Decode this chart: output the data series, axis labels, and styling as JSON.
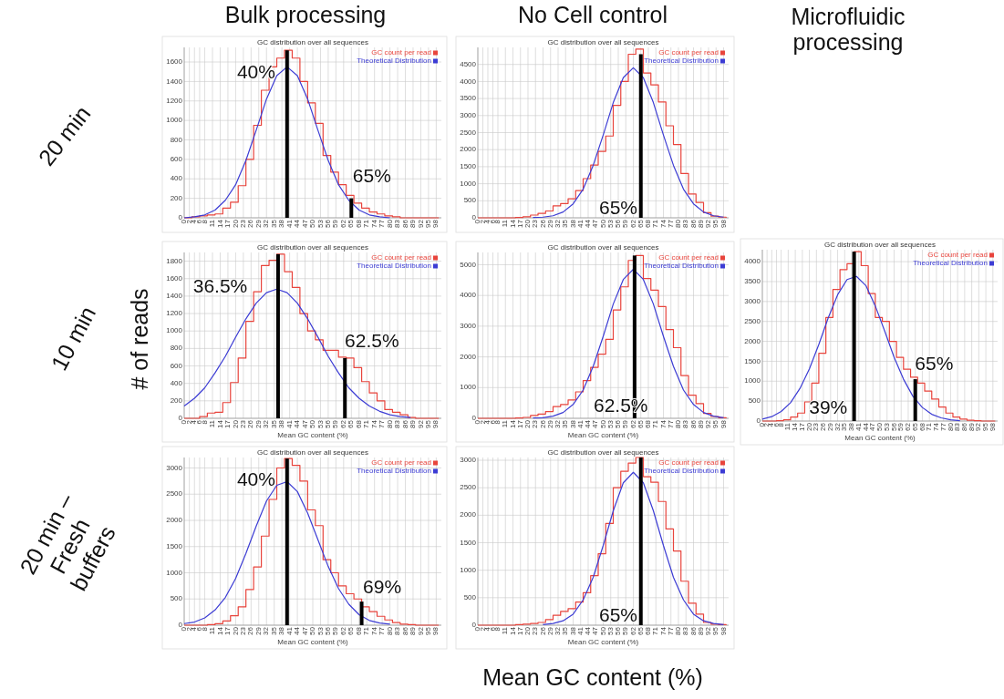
{
  "chart_data": [
    {
      "type": "other",
      "annotations": [
        "Bulk processing",
        "No Cell control",
        "Microfluidic processing",
        "20 min",
        "10 min",
        "20 min – Fresh buffers",
        "# of reads",
        "Mean GC content (%)"
      ]
    },
    {
      "type": "line",
      "title": "GC distribution over all sequences",
      "xlim": [
        0,
        100
      ],
      "ylim": [
        0,
        1750
      ],
      "xticks": [
        0,
        2,
        4,
        6,
        8,
        11,
        14,
        17,
        20,
        23,
        26,
        29,
        32,
        35,
        38,
        41,
        44,
        47,
        50,
        53,
        56,
        59,
        62,
        65,
        68,
        71,
        74,
        77,
        80,
        83,
        86,
        89,
        92,
        95,
        98
      ],
      "yticks": [
        0,
        200,
        400,
        600,
        800,
        1000,
        1200,
        1400,
        1600
      ],
      "grid": true,
      "legend": "top right",
      "series": [
        {
          "name": "GC count per read",
          "type": "step",
          "color": "#e8443c",
          "x": [
            0,
            3,
            6,
            9,
            12,
            15,
            18,
            21,
            24,
            27,
            30,
            33,
            36,
            39,
            42,
            45,
            48,
            51,
            54,
            57,
            60,
            63,
            66,
            69,
            72,
            75,
            78,
            81,
            84,
            87,
            90,
            93,
            96,
            99
          ],
          "values": [
            0,
            10,
            20,
            30,
            40,
            100,
            160,
            330,
            600,
            950,
            1310,
            1550,
            1640,
            1720,
            1640,
            1400,
            1180,
            970,
            640,
            470,
            340,
            230,
            150,
            100,
            60,
            40,
            20,
            10,
            0,
            0,
            0,
            0,
            0,
            0
          ]
        },
        {
          "name": "Theoretical Distribution",
          "type": "line",
          "color": "#3c3cd4",
          "x": [
            0,
            4,
            8,
            12,
            16,
            20,
            24,
            28,
            32,
            36,
            40,
            44,
            48,
            52,
            56,
            60,
            64,
            68,
            72,
            76,
            80
          ],
          "values": [
            0,
            10,
            30,
            80,
            180,
            340,
            590,
            900,
            1220,
            1460,
            1550,
            1460,
            1220,
            900,
            590,
            340,
            180,
            80,
            30,
            10,
            0
          ]
        },
        {
          "type": "bar",
          "color": "#000000",
          "x": [
            40,
            65
          ],
          "values": [
            1720,
            200
          ]
        }
      ],
      "annotations": [
        "40%",
        "65%"
      ]
    },
    {
      "type": "line",
      "title": "GC distribution over all sequences",
      "xlim": [
        0,
        100
      ],
      "ylim": [
        0,
        5000
      ],
      "xticks": [
        0,
        2,
        4,
        6,
        8,
        11,
        14,
        17,
        20,
        23,
        26,
        29,
        32,
        35,
        38,
        41,
        44,
        47,
        50,
        53,
        56,
        59,
        62,
        65,
        68,
        71,
        74,
        77,
        80,
        83,
        86,
        89,
        92,
        95,
        98
      ],
      "yticks": [
        0,
        500,
        1000,
        1500,
        2000,
        2500,
        3000,
        3500,
        4000,
        4500
      ],
      "grid": true,
      "legend": "top right",
      "series": [
        {
          "name": "GC count per read",
          "type": "step",
          "color": "#e8443c",
          "x": [
            0,
            3,
            6,
            9,
            12,
            15,
            18,
            21,
            24,
            27,
            30,
            33,
            36,
            39,
            42,
            45,
            48,
            51,
            54,
            57,
            60,
            63,
            66,
            69,
            72,
            75,
            78,
            81,
            84,
            87,
            90,
            93,
            96,
            99
          ],
          "values": [
            0,
            0,
            0,
            0,
            0,
            10,
            30,
            80,
            130,
            200,
            350,
            420,
            560,
            800,
            1150,
            1550,
            1950,
            2400,
            3300,
            4000,
            4800,
            4950,
            4250,
            3900,
            3400,
            2700,
            2150,
            1300,
            700,
            450,
            150,
            50,
            20,
            0
          ]
        },
        {
          "name": "Theoretical Distribution",
          "type": "line",
          "color": "#3c3cd4",
          "x": [
            22,
            26,
            30,
            34,
            38,
            42,
            46,
            50,
            54,
            58,
            62,
            66,
            70,
            74,
            78,
            82,
            86,
            90,
            94,
            98
          ],
          "values": [
            10,
            20,
            60,
            170,
            410,
            840,
            1540,
            2430,
            3380,
            4110,
            4400,
            4110,
            3380,
            2430,
            1540,
            840,
            410,
            170,
            60,
            20
          ]
        },
        {
          "type": "bar",
          "color": "#000000",
          "x": [
            65
          ],
          "values": [
            4800
          ]
        }
      ],
      "annotations": [
        "65%"
      ]
    },
    {
      "type": "line",
      "title": "GC distribution over all sequences",
      "xlabel": "Mean GC content (%)",
      "xlim": [
        0,
        100
      ],
      "ylim": [
        0,
        1900
      ],
      "xticks": [
        0,
        2,
        4,
        6,
        8,
        11,
        14,
        17,
        20,
        23,
        26,
        29,
        32,
        35,
        38,
        41,
        44,
        47,
        50,
        53,
        56,
        59,
        62,
        65,
        68,
        71,
        74,
        77,
        80,
        83,
        86,
        89,
        92,
        95,
        98
      ],
      "yticks": [
        0,
        200,
        400,
        600,
        800,
        1000,
        1200,
        1400,
        1600,
        1800
      ],
      "grid": true,
      "legend": "top right",
      "series": [
        {
          "name": "GC count per read",
          "type": "step",
          "color": "#e8443c",
          "x": [
            0,
            3,
            6,
            9,
            12,
            15,
            18,
            21,
            24,
            27,
            30,
            33,
            36,
            39,
            42,
            45,
            48,
            51,
            54,
            57,
            60,
            63,
            66,
            69,
            72,
            75,
            78,
            81,
            84,
            87,
            90,
            93,
            96,
            99
          ],
          "values": [
            0,
            0,
            20,
            60,
            70,
            180,
            410,
            690,
            1110,
            1450,
            1750,
            1810,
            1880,
            1680,
            1500,
            1200,
            1000,
            900,
            780,
            780,
            700,
            690,
            580,
            420,
            290,
            200,
            100,
            70,
            40,
            10,
            0,
            0,
            0,
            0
          ]
        },
        {
          "name": "Theoretical Distribution",
          "type": "line",
          "color": "#3c3cd4",
          "x": [
            0,
            4,
            8,
            12,
            16,
            20,
            24,
            28,
            32,
            36,
            40,
            44,
            48,
            52,
            56,
            60,
            64,
            68,
            72,
            76,
            80,
            84,
            88
          ],
          "values": [
            140,
            230,
            350,
            520,
            710,
            930,
            1140,
            1320,
            1440,
            1480,
            1440,
            1320,
            1140,
            930,
            710,
            520,
            350,
            230,
            140,
            80,
            40,
            20,
            10
          ]
        },
        {
          "type": "bar",
          "color": "#000000",
          "x": [
            36.5,
            62.5
          ],
          "values": [
            1880,
            690
          ]
        }
      ],
      "annotations": [
        "36.5%",
        "62.5%"
      ]
    },
    {
      "type": "line",
      "title": "GC distribution over all sequences",
      "xlabel": "Mean GC content (%)",
      "xlim": [
        0,
        100
      ],
      "ylim": [
        0,
        5400
      ],
      "xticks": [
        0,
        2,
        4,
        6,
        8,
        11,
        14,
        17,
        20,
        23,
        26,
        29,
        32,
        35,
        38,
        41,
        44,
        47,
        50,
        53,
        56,
        59,
        62,
        65,
        68,
        71,
        74,
        77,
        80,
        83,
        86,
        89,
        92,
        95,
        98
      ],
      "yticks": [
        0,
        1000,
        2000,
        3000,
        4000,
        5000
      ],
      "grid": true,
      "legend": "top right",
      "series": [
        {
          "name": "GC count per read",
          "type": "step",
          "color": "#e8443c",
          "x": [
            0,
            3,
            6,
            9,
            12,
            15,
            18,
            21,
            24,
            27,
            30,
            33,
            36,
            39,
            42,
            45,
            48,
            51,
            54,
            57,
            60,
            63,
            66,
            69,
            72,
            75,
            78,
            81,
            84,
            87,
            90,
            93,
            96,
            99
          ],
          "values": [
            0,
            0,
            0,
            0,
            0,
            10,
            30,
            90,
            140,
            220,
            380,
            450,
            600,
            860,
            1230,
            1660,
            2090,
            2570,
            3530,
            4280,
            5140,
            5300,
            4550,
            4170,
            3640,
            2890,
            2300,
            1390,
            750,
            480,
            160,
            60,
            20,
            0
          ]
        },
        {
          "name": "Theoretical Distribution",
          "type": "line",
          "color": "#3c3cd4",
          "x": [
            22,
            26,
            30,
            34,
            38,
            42,
            46,
            50,
            54,
            58,
            62,
            66,
            70,
            74,
            78,
            82,
            86,
            90,
            94,
            98
          ],
          "values": [
            10,
            20,
            70,
            190,
            450,
            920,
            1690,
            2670,
            3720,
            4520,
            4850,
            4520,
            3720,
            2670,
            1690,
            920,
            450,
            190,
            70,
            20
          ]
        },
        {
          "type": "bar",
          "color": "#000000",
          "x": [
            62.5
          ],
          "values": [
            5300
          ]
        }
      ],
      "annotations": [
        "62.5%"
      ]
    },
    {
      "type": "line",
      "title": "GC distribution over all sequences",
      "xlabel": "Mean GC content (%)",
      "xlim": [
        0,
        100
      ],
      "ylim": [
        0,
        4300
      ],
      "xticks": [
        0,
        2,
        4,
        6,
        8,
        11,
        14,
        17,
        20,
        23,
        26,
        29,
        32,
        35,
        38,
        41,
        44,
        47,
        50,
        53,
        56,
        59,
        62,
        65,
        68,
        71,
        74,
        77,
        80,
        83,
        86,
        89,
        92,
        95,
        98
      ],
      "yticks": [
        0,
        500,
        1000,
        1500,
        2000,
        2500,
        3000,
        3500,
        4000
      ],
      "grid": true,
      "legend": "top right",
      "series": [
        {
          "name": "GC count per read",
          "type": "step",
          "color": "#e8443c",
          "x": [
            0,
            3,
            6,
            9,
            12,
            15,
            18,
            21,
            24,
            27,
            30,
            33,
            36,
            39,
            42,
            45,
            48,
            51,
            54,
            57,
            60,
            63,
            66,
            69,
            72,
            75,
            78,
            81,
            84,
            87,
            90,
            93,
            96,
            99
          ],
          "values": [
            0,
            0,
            10,
            30,
            100,
            200,
            480,
            950,
            1700,
            2600,
            3300,
            3800,
            3950,
            4250,
            3900,
            3200,
            2600,
            2500,
            2000,
            1600,
            1300,
            1100,
            950,
            750,
            550,
            350,
            200,
            100,
            50,
            20,
            10,
            0,
            0,
            0
          ]
        },
        {
          "name": "Theoretical Distribution",
          "type": "line",
          "color": "#3c3cd4",
          "x": [
            0,
            4,
            8,
            12,
            16,
            20,
            24,
            28,
            32,
            36,
            40,
            44,
            48,
            52,
            56,
            60,
            64,
            68,
            72,
            76,
            80,
            84
          ],
          "values": [
            50,
            110,
            240,
            460,
            820,
            1310,
            1920,
            2590,
            3170,
            3550,
            3630,
            3400,
            2890,
            2260,
            1600,
            1050,
            620,
            340,
            170,
            80,
            30,
            10
          ]
        },
        {
          "type": "bar",
          "color": "#000000",
          "x": [
            39,
            65
          ],
          "values": [
            4250,
            1050
          ]
        }
      ],
      "annotations": [
        "39%",
        "65%"
      ]
    },
    {
      "type": "line",
      "title": "GC distribution over all sequences",
      "xlabel": "Mean GC content (%)",
      "xlim": [
        0,
        100
      ],
      "ylim": [
        0,
        3200
      ],
      "xticks": [
        0,
        2,
        4,
        6,
        8,
        11,
        14,
        17,
        20,
        23,
        26,
        29,
        32,
        35,
        38,
        41,
        44,
        47,
        50,
        53,
        56,
        59,
        62,
        65,
        68,
        71,
        74,
        77,
        80,
        83,
        86,
        89,
        92,
        95,
        98
      ],
      "yticks": [
        0,
        500,
        1000,
        1500,
        2000,
        2500,
        3000
      ],
      "grid": true,
      "legend": "top right",
      "series": [
        {
          "name": "GC count per read",
          "type": "step",
          "color": "#e8443c",
          "x": [
            0,
            3,
            6,
            9,
            12,
            15,
            18,
            21,
            24,
            27,
            30,
            33,
            36,
            39,
            42,
            45,
            48,
            51,
            54,
            57,
            60,
            63,
            66,
            69,
            72,
            75,
            78,
            81,
            84,
            87,
            90,
            93,
            96,
            99
          ],
          "values": [
            0,
            0,
            0,
            10,
            30,
            80,
            180,
            350,
            680,
            1110,
            1700,
            2400,
            3000,
            3180,
            3050,
            2750,
            2200,
            1900,
            1250,
            1000,
            750,
            600,
            500,
            350,
            260,
            170,
            100,
            50,
            20,
            10,
            0,
            0,
            0,
            0
          ]
        },
        {
          "name": "Theoretical Distribution",
          "type": "line",
          "color": "#3c3cd4",
          "x": [
            0,
            4,
            8,
            12,
            16,
            20,
            24,
            28,
            32,
            36,
            40,
            44,
            48,
            52,
            56,
            60,
            64,
            68,
            72,
            76,
            80
          ],
          "values": [
            30,
            60,
            140,
            290,
            530,
            890,
            1370,
            1890,
            2370,
            2670,
            2740,
            2550,
            2140,
            1630,
            1120,
            700,
            400,
            200,
            90,
            40,
            20
          ]
        },
        {
          "type": "bar",
          "color": "#000000",
          "x": [
            40,
            69
          ],
          "values": [
            3180,
            450
          ]
        }
      ],
      "annotations": [
        "40%",
        "69%"
      ]
    },
    {
      "type": "line",
      "title": "GC distribution over all sequences",
      "xlabel": "Mean GC content (%)",
      "xlim": [
        0,
        100
      ],
      "ylim": [
        0,
        3050
      ],
      "xticks": [
        0,
        2,
        4,
        6,
        8,
        11,
        14,
        17,
        20,
        23,
        26,
        29,
        32,
        35,
        38,
        41,
        44,
        47,
        50,
        53,
        56,
        59,
        62,
        65,
        68,
        71,
        74,
        77,
        80,
        83,
        86,
        89,
        92,
        95,
        98
      ],
      "yticks": [
        0,
        500,
        1000,
        1500,
        2000,
        2500,
        3000
      ],
      "grid": true,
      "legend": "top right",
      "series": [
        {
          "name": "GC count per read",
          "type": "step",
          "color": "#e8443c",
          "x": [
            0,
            3,
            6,
            9,
            12,
            15,
            18,
            21,
            24,
            27,
            30,
            33,
            36,
            39,
            42,
            45,
            48,
            51,
            54,
            57,
            60,
            63,
            66,
            69,
            72,
            75,
            78,
            81,
            84,
            87,
            90,
            93,
            96,
            99
          ],
          "values": [
            0,
            0,
            0,
            0,
            0,
            10,
            20,
            30,
            50,
            100,
            180,
            250,
            300,
            420,
            590,
            900,
            1300,
            1850,
            2500,
            2800,
            2950,
            3050,
            2700,
            2600,
            2250,
            1750,
            1350,
            800,
            400,
            200,
            50,
            20,
            10,
            0
          ]
        },
        {
          "name": "Theoretical Distribution",
          "type": "line",
          "color": "#3c3cd4",
          "x": [
            26,
            30,
            34,
            38,
            42,
            46,
            50,
            54,
            58,
            62,
            66,
            70,
            74,
            78,
            82,
            86,
            90,
            94,
            98
          ],
          "values": [
            10,
            30,
            80,
            200,
            460,
            870,
            1450,
            2080,
            2590,
            2780,
            2590,
            2080,
            1450,
            870,
            460,
            200,
            80,
            30,
            10
          ]
        },
        {
          "type": "bar",
          "color": "#000000",
          "x": [
            65
          ],
          "values": [
            3050
          ]
        }
      ],
      "annotations": [
        "65%"
      ]
    }
  ]
}
